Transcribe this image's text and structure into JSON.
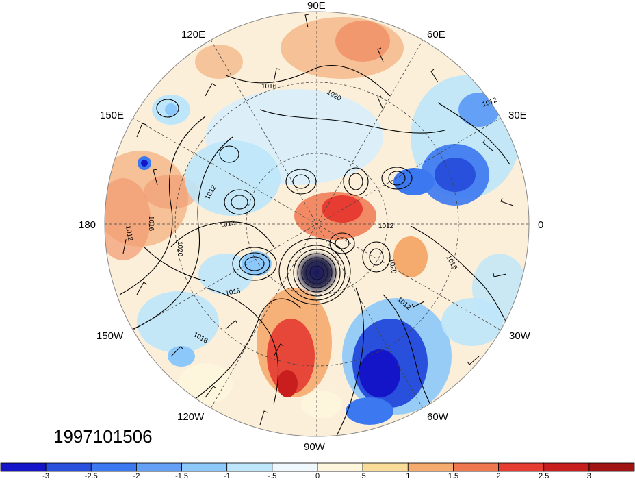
{
  "longitude_labels": {
    "e90": "90E",
    "e120": "120E",
    "e60": "60E",
    "e150": "150E",
    "e30": "30E",
    "w180": "180",
    "zero": "0",
    "w150": "150W",
    "w30": "30W",
    "w120": "120W",
    "w60": "60W",
    "w90": "90W"
  },
  "timestamp": "1997101506",
  "contour_labels": [
    "1016",
    "1020",
    "1012",
    "1012",
    "1012",
    "1016",
    "1016",
    "1020",
    "1012",
    "1012",
    "1016",
    "1016",
    "1020",
    "1012"
  ],
  "colorbar": {
    "labels": [
      "-3",
      "-2.5",
      "-2",
      "-1.5",
      "-1",
      "-.5",
      "0",
      ".5",
      "1",
      "1.5",
      "2",
      "2.5",
      "3"
    ],
    "colors": [
      "#1414c8",
      "#2850dc",
      "#3c78f0",
      "#64a0f5",
      "#8cc8fa",
      "#bee6fa",
      "#eef8fd",
      "#fdf6dc",
      "#fadc9a",
      "#f5aa6e",
      "#f07850",
      "#e63c32",
      "#c81e1e",
      "#a01414"
    ]
  }
}
